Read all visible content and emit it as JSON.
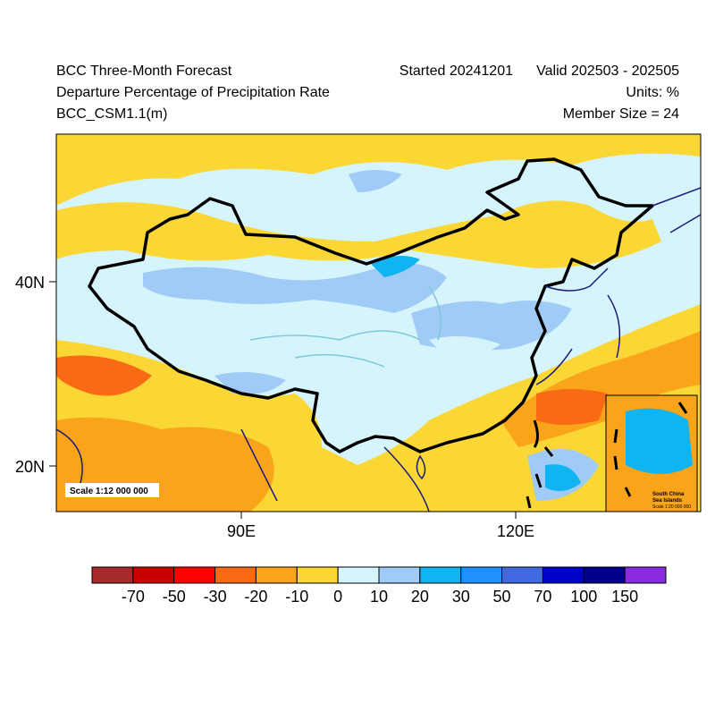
{
  "header": {
    "title": "BCC Three-Month Forecast",
    "subtitle": "Departure Percentage of Precipitation Rate",
    "model": "BCC_CSM1.1(m)",
    "started": "Started 20241201",
    "valid": "Valid 202503 - 202505",
    "units": "Units: %",
    "member_size": "Member Size = 24"
  },
  "map": {
    "lat_labels": [
      "40N",
      "20N"
    ],
    "lon_labels": [
      "90E",
      "120E"
    ],
    "scale_label": "Scale 1:12 000 000",
    "inset": {
      "title_line1": "South China",
      "title_line2": "Sea Islands",
      "scale": "Scale 1:20 000 000"
    }
  },
  "colorbar": {
    "labels": [
      -70,
      -50,
      -30,
      -20,
      -10,
      0,
      10,
      20,
      30,
      50,
      70,
      100,
      150
    ],
    "colors": [
      "#a52a2a",
      "#cd0000",
      "#ff0000",
      "#f86a14",
      "#faa41a",
      "#fbd735",
      "#d6f4fb",
      "#a0cbf7",
      "#10b4f0",
      "#1e90ff",
      "#4169e1",
      "#0000cd",
      "#00008b",
      "#8a2be2"
    ]
  }
}
